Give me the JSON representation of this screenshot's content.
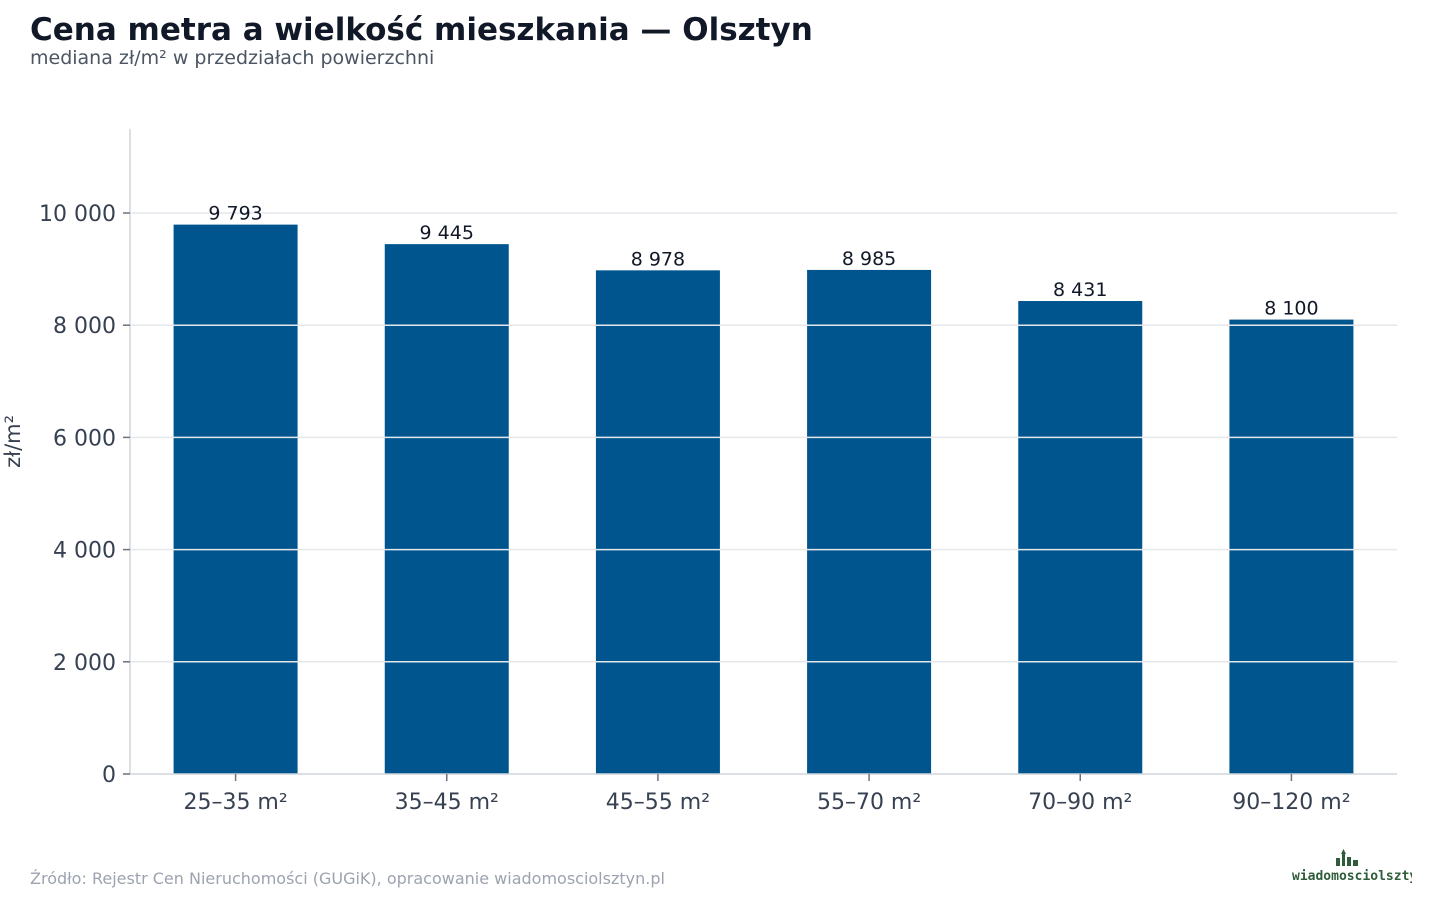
{
  "header": {
    "title": "Cena metra a wielkość mieszkania — Olsztyn",
    "subtitle": "mediana zł/m² w przedziałach powierzchni"
  },
  "footer": {
    "source": "Źródło: Rejestr Cen Nieruchomości (GUGiK), opracowanie wiadomosciolsztyn.pl",
    "logo_text": "wiadomosciolsztyn.pl"
  },
  "colors": {
    "bar": "#00558f",
    "grid": "#e5e7eb",
    "axis": "#d1d5db",
    "tick_text": "#374151",
    "label_text": "#111827"
  },
  "chart_data": {
    "type": "bar",
    "categories": [
      "25–35 m²",
      "35–45 m²",
      "45–55 m²",
      "55–70 m²",
      "70–90 m²",
      "90–120 m²"
    ],
    "values": [
      9793,
      9445,
      8978,
      8985,
      8431,
      8100
    ],
    "value_labels": [
      "9 793",
      "9 445",
      "8 978",
      "8 985",
      "8 431",
      "8 100"
    ],
    "title": "Cena metra a wielkość mieszkania — Olsztyn",
    "subtitle": "mediana zł/m² w przedziałach powierzchni",
    "xlabel": "",
    "ylabel": "zł/m²",
    "ylim": [
      0,
      11500
    ],
    "yticks": [
      0,
      2000,
      4000,
      6000,
      8000,
      10000
    ],
    "ytick_labels": [
      "0",
      "2 000",
      "4 000",
      "6 000",
      "8 000",
      "10 000"
    ],
    "grid": true,
    "legend": "none"
  }
}
